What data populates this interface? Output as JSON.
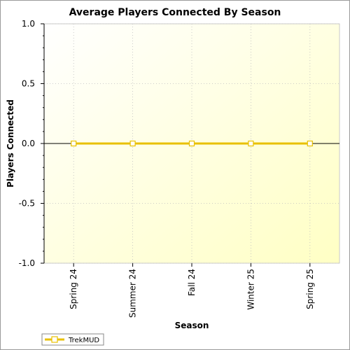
{
  "chart_data": {
    "type": "line",
    "title": "Average Players Connected By Season",
    "xlabel": "Season",
    "ylabel": "Players Connected",
    "categories": [
      "Spring 24",
      "Summer 24",
      "Fall 24",
      "Winter 25",
      "Spring 25"
    ],
    "series": [
      {
        "name": "TrekMUD",
        "values": [
          0,
          0,
          0,
          0,
          0
        ],
        "color": "#e8c000"
      }
    ],
    "ylim": [
      -1.0,
      1.0
    ],
    "yticks": [
      "1.0",
      "0.5",
      "0.0",
      "-0.5",
      "-1.0"
    ],
    "grid": true,
    "legend_position": "bottom-left",
    "plot_background": "#fffde0"
  }
}
